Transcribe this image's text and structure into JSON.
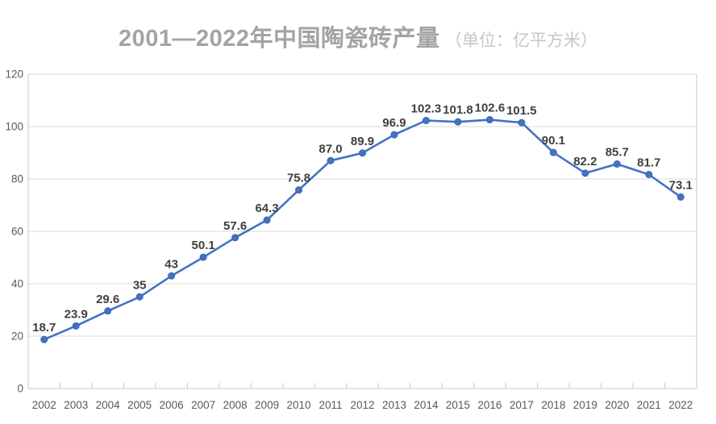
{
  "title": {
    "main": "2001—2022年中国陶瓷砖产量",
    "unit": "（单位：亿平方米）"
  },
  "chart_data": {
    "type": "line",
    "title": "2001—2022年中国陶瓷砖产量",
    "subtitle": "（单位：亿平方米）",
    "categories": [
      "2002",
      "2003",
      "2004",
      "2005",
      "2006",
      "2007",
      "2008",
      "2009",
      "2010",
      "2011",
      "2012",
      "2013",
      "2014",
      "2015",
      "2016",
      "2017",
      "2018",
      "2019",
      "2020",
      "2021",
      "2022"
    ],
    "values": [
      18.7,
      23.9,
      29.6,
      35,
      43,
      50.1,
      57.6,
      64.3,
      75.8,
      87.0,
      89.9,
      96.9,
      102.3,
      101.8,
      102.6,
      101.5,
      90.1,
      82.2,
      85.7,
      81.7,
      73.1
    ],
    "labels": [
      "18.7",
      "23.9",
      "29.6",
      "35",
      "43",
      "50.1",
      "57.6",
      "64.3",
      "75.8",
      "87.0",
      "89.9",
      "96.9",
      "102.3",
      "101.8",
      "102.6",
      "101.5",
      "90.1",
      "82.2",
      "85.7",
      "81.7",
      "73.1"
    ],
    "xlabel": "",
    "ylabel": "",
    "ylim": [
      0,
      120
    ],
    "ytick_step": 20,
    "grid": true,
    "legend": "none",
    "colors": {
      "line": "#4472C4",
      "marker_fill": "#4472C4",
      "marker_stroke": "#3a62b0",
      "data_label": "#404040",
      "last_data_label": "#FF0000",
      "gridline": "#d9d9d9",
      "axis": "#c8c8c8",
      "tick_text": "#595959",
      "title": "#a3a3a3",
      "subtitle": "#c6c6c6"
    }
  }
}
